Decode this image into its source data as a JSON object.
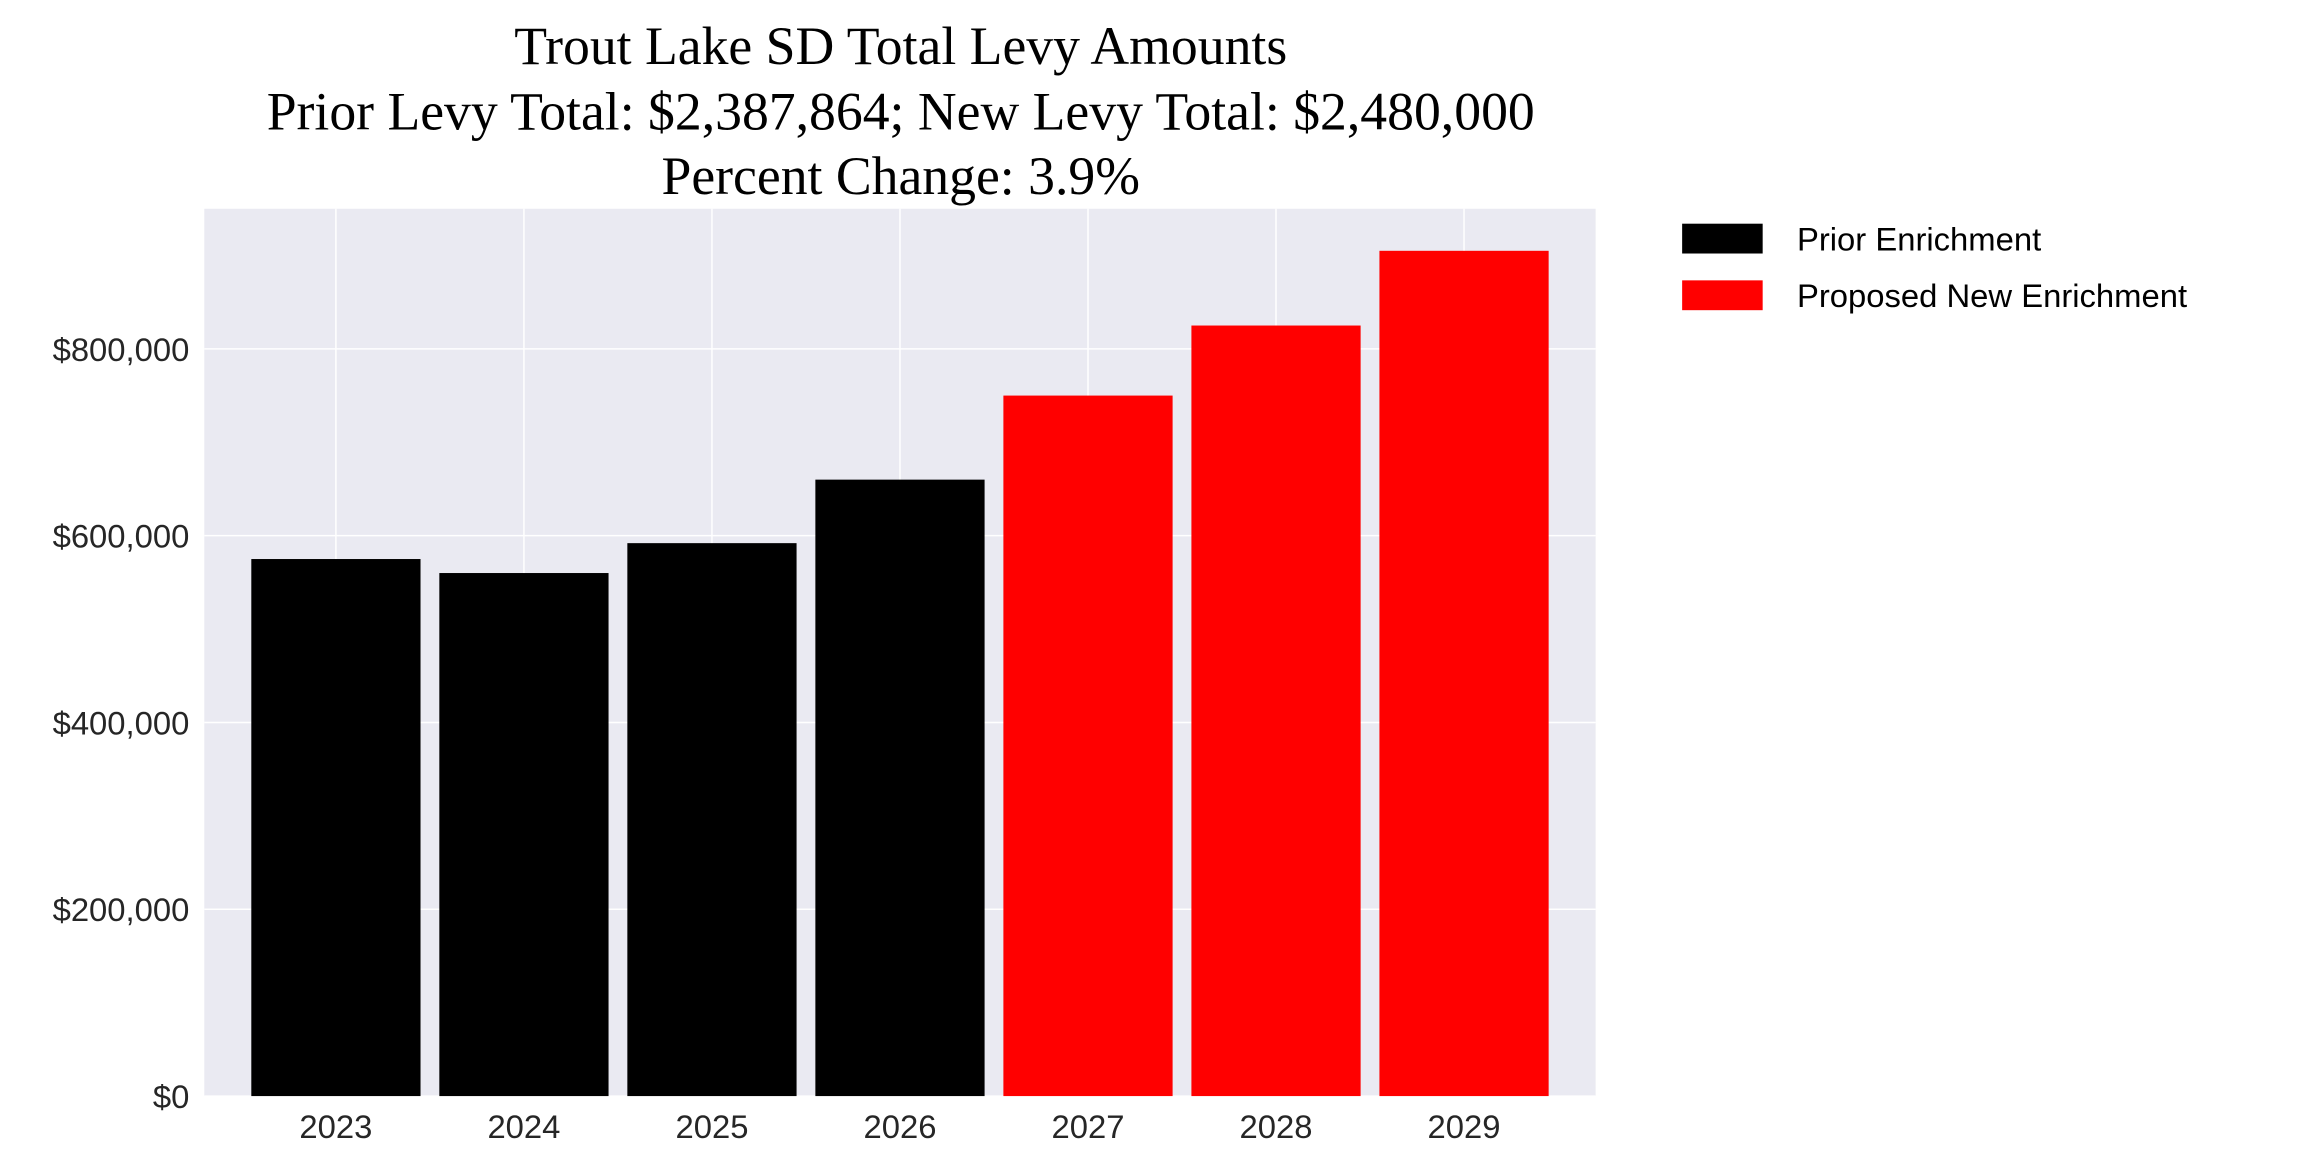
{
  "chart_data": {
    "type": "bar",
    "title": "Trout Lake SD Total Levy Amounts",
    "subtitle_lines": [
      "Prior Levy Total:  $2,387,864; New Levy Total: $2,480,000",
      "Percent Change: 3.9%"
    ],
    "xlabel": "",
    "ylabel": "",
    "categories": [
      "2023",
      "2024",
      "2025",
      "2026",
      "2027",
      "2028",
      "2029"
    ],
    "values": [
      575000,
      560000,
      592000,
      660000,
      750000,
      825000,
      905000
    ],
    "bar_series": [
      "Prior Enrichment",
      "Prior Enrichment",
      "Prior Enrichment",
      "Prior Enrichment",
      "Proposed New Enrichment",
      "Proposed New Enrichment",
      "Proposed New Enrichment"
    ],
    "series": [
      {
        "name": "Prior Enrichment",
        "color": "#000000"
      },
      {
        "name": "Proposed New Enrichment",
        "color": "#ff0000"
      }
    ],
    "ylim": [
      0,
      950000
    ],
    "yticks": [
      0,
      200000,
      400000,
      600000,
      800000
    ],
    "ytick_labels": [
      "$0",
      "$200,000",
      "$400,000",
      "$600,000",
      "$800,000"
    ],
    "grid": true,
    "legend_position": "outside-top-right",
    "background_color": "#eaeaf2"
  }
}
